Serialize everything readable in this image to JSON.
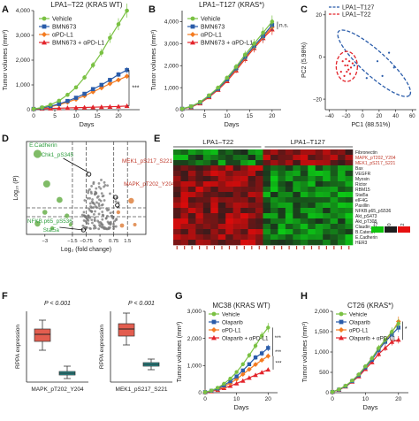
{
  "panel_letters": [
    "A",
    "B",
    "C",
    "D",
    "E",
    "F",
    "G",
    "H"
  ],
  "series_colors": {
    "Vehicle": "#7ac143",
    "BMN673": "#2a5caa",
    "aPD-L1": "#f47b20",
    "combo": "#e3242b",
    "Olaparib": "#2a5caa"
  },
  "chart_data": [
    {
      "id": "A",
      "type": "line",
      "title": "LPA1–T22 (KRAS WT)",
      "xlabel": "Days",
      "ylabel": "Tumor volumes (mm³)",
      "xlim": [
        0,
        25
      ],
      "ylim": [
        0,
        4000
      ],
      "xticks": [
        "0",
        "5",
        "10",
        "15",
        "20"
      ],
      "yticks": [
        "0",
        "1,000",
        "2,000",
        "3,000",
        "4,000"
      ],
      "x": [
        0,
        2,
        4,
        6,
        8,
        10,
        12,
        14,
        16,
        18,
        20,
        22
      ],
      "legend": [
        "Vehicle",
        "BMN673",
        "αPD-L1",
        "BMN673 + αPD-L1"
      ],
      "series": [
        {
          "name": "Vehicle",
          "color": "#7ac143",
          "marker": "circle",
          "values": [
            30,
            90,
            200,
            360,
            600,
            900,
            1300,
            1800,
            2300,
            2900,
            3450,
            4000
          ]
        },
        {
          "name": "BMN673",
          "color": "#2a5caa",
          "marker": "square",
          "values": [
            30,
            70,
            140,
            230,
            350,
            480,
            640,
            830,
            1000,
            1200,
            1420,
            1600
          ]
        },
        {
          "name": "αPD-L1",
          "color": "#f47b20",
          "marker": "diamond",
          "values": [
            30,
            60,
            120,
            200,
            300,
            420,
            560,
            720,
            880,
            1050,
            1200,
            1350
          ]
        },
        {
          "name": "BMN673 + αPD-L1",
          "color": "#e3242b",
          "marker": "triangle",
          "values": [
            30,
            40,
            50,
            60,
            70,
            80,
            90,
            100,
            110,
            120,
            130,
            150
          ]
        }
      ],
      "annotations": [
        "***"
      ]
    },
    {
      "id": "B",
      "type": "line",
      "title": "LPA1–T127 (KRAS*)",
      "xlabel": "Days",
      "ylabel": "Tumor volumes (mm³)",
      "xlim": [
        0,
        22
      ],
      "ylim": [
        0,
        4500
      ],
      "xticks": [
        "0",
        "5",
        "10",
        "15",
        "20"
      ],
      "yticks": [
        "0",
        "1,000",
        "2,000",
        "3,000",
        "4,000"
      ],
      "x": [
        0,
        2,
        4,
        6,
        8,
        10,
        12,
        14,
        16,
        18,
        20
      ],
      "legend": [
        "Vehicle",
        "BMN673",
        "αPD-L1",
        "BMN673 + αPD-L1"
      ],
      "series": [
        {
          "name": "Vehicle",
          "color": "#7ac143",
          "marker": "circle",
          "values": [
            40,
            150,
            350,
            650,
            1000,
            1450,
            1950,
            2500,
            3000,
            3500,
            4000
          ]
        },
        {
          "name": "BMN673",
          "color": "#2a5caa",
          "marker": "square",
          "values": [
            40,
            140,
            330,
            620,
            950,
            1380,
            1880,
            2400,
            2900,
            3350,
            3850
          ]
        },
        {
          "name": "αPD-L1",
          "color": "#f47b20",
          "marker": "diamond",
          "values": [
            40,
            130,
            310,
            600,
            930,
            1350,
            1830,
            2350,
            2850,
            3300,
            3750
          ]
        },
        {
          "name": "BMN673 + αPD-L1",
          "color": "#e3242b",
          "marker": "triangle",
          "values": [
            40,
            120,
            290,
            570,
            900,
            1300,
            1780,
            2300,
            2800,
            3250,
            3650
          ]
        }
      ],
      "annotations": [
        "n.s."
      ]
    },
    {
      "id": "C",
      "type": "scatter",
      "xlabel": "PC1 (88.51%)",
      "ylabel": "PC2 (5.98%)",
      "xlim": [
        -45,
        65
      ],
      "ylim": [
        -25,
        22
      ],
      "xticks": [
        "−40",
        "−20",
        "0",
        "20",
        "40",
        "60"
      ],
      "yticks": [
        "−20",
        "0",
        "20"
      ],
      "legend": [
        "LPA1–T127",
        "LPA1–T22"
      ],
      "series": [
        {
          "name": "LPA1–T127",
          "color": "#2a5caa",
          "points": [
            [
              -10,
              -4
            ],
            [
              5,
              -10
            ],
            [
              18,
              -2
            ],
            [
              24,
              -9
            ],
            [
              32,
              2
            ],
            [
              38,
              -5
            ]
          ]
        },
        {
          "name": "LPA1–T22",
          "color": "#e3242b",
          "points": [
            [
              -26,
              -7
            ],
            [
              -24,
              -2
            ],
            [
              -22,
              -9
            ],
            [
              -21,
              -4
            ],
            [
              -20,
              -1
            ],
            [
              -19,
              -7
            ],
            [
              -18,
              -4
            ],
            [
              -17,
              -6
            ],
            [
              -16,
              -2
            ],
            [
              -15,
              -8
            ],
            [
              -14,
              -5
            ],
            [
              -12,
              -3
            ]
          ]
        }
      ]
    },
    {
      "id": "D",
      "type": "scatter",
      "xlabel": "Log₂ (fold change)",
      "ylabel": "Log₁₀ (P)",
      "xlim": [
        -4,
        2.5
      ],
      "xticks": [
        "−3",
        "−1.5",
        "−0.75",
        "0",
        "0.75",
        "1.5"
      ],
      "labels": [
        "E.Cadherin",
        "Chk1_pS345",
        "NFKB.p65_pS536",
        "Stat5a",
        "MEK1_pS217_S221",
        "MAPK_pT202_Y204"
      ]
    },
    {
      "id": "E",
      "type": "heatmap",
      "columns": [
        "LPA1–T22",
        "LPA1–T127"
      ],
      "rows": [
        "Fibronectin",
        "MAPK_pT202_Y204",
        "MEK1_pS217_S221",
        "Bax",
        "VEGFR",
        "Myosin",
        "Rictor",
        "RBM15",
        "Stat5a",
        "eIF4G",
        "Paxillin",
        "NFKB.p65_pS536",
        "Akt_pS473",
        "Akt_pT308",
        "Claudin_7",
        "B.Catenin",
        "E.Cadherin",
        "HER3"
      ],
      "highlight_rows": [
        "MAPK_pT202_Y204",
        "MEK1_pS217_S221"
      ],
      "scale": [
        "−2",
        "0",
        "2"
      ]
    },
    {
      "id": "F",
      "type": "box",
      "ylabel": "RPPA expression",
      "plots": [
        {
          "label": "MAPK_pT202_Y204",
          "pvalue": "P < 0.001",
          "groups": [
            {
              "color": "#e35d4f",
              "q1": 1.15,
              "median": 1.35,
              "q3": 1.5,
              "whisker_low": 0.9,
              "whisker_high": 1.75
            },
            {
              "color": "#2a9d9f",
              "q1": 0.2,
              "median": 0.25,
              "q3": 0.3,
              "whisker_low": 0.1,
              "whisker_high": 0.45
            }
          ]
        },
        {
          "label": "MEK1_pS217_S221",
          "pvalue": "P < 0.001",
          "groups": [
            {
              "color": "#e35d4f",
              "q1": 1.3,
              "median": 1.5,
              "q3": 1.65,
              "whisker_low": 1.05,
              "whisker_high": 1.95
            },
            {
              "color": "#2a9d9f",
              "q1": 0.45,
              "median": 0.5,
              "q3": 0.55,
              "whisker_low": 0.35,
              "whisker_high": 0.65
            }
          ]
        }
      ]
    },
    {
      "id": "G",
      "type": "line",
      "title": "MC38 (KRAS WT)",
      "xlabel": "Days",
      "ylabel": "Tumor volumes (mm³)",
      "xlim": [
        0,
        23
      ],
      "ylim": [
        0,
        3000
      ],
      "xticks": [
        "0",
        "10",
        "20"
      ],
      "yticks": [
        "0",
        "1,000",
        "2,000",
        "3,000"
      ],
      "x": [
        0,
        2,
        4,
        6,
        8,
        10,
        12,
        14,
        16,
        18,
        20
      ],
      "legend": [
        "Vehicle",
        "Olaparib",
        "αPD-L1",
        "Olaparib + αPD-L1"
      ],
      "series": [
        {
          "name": "Vehicle",
          "color": "#7ac143",
          "marker": "circle",
          "values": [
            20,
            80,
            180,
            330,
            520,
            760,
            1050,
            1380,
            1730,
            2100,
            2400
          ]
        },
        {
          "name": "Olaparib",
          "color": "#2a5caa",
          "marker": "square",
          "values": [
            20,
            70,
            150,
            270,
            420,
            600,
            820,
            1050,
            1300,
            1450,
            1650
          ]
        },
        {
          "name": "αPD-L1",
          "color": "#f47b20",
          "marker": "diamond",
          "values": [
            20,
            60,
            130,
            230,
            350,
            500,
            680,
            860,
            1040,
            1200,
            1350
          ]
        },
        {
          "name": "Olaparib + αPD-L1",
          "color": "#e3242b",
          "marker": "triangle",
          "values": [
            20,
            50,
            100,
            170,
            250,
            340,
            440,
            550,
            650,
            750,
            850
          ]
        }
      ],
      "annotations": [
        "***",
        "***",
        "***"
      ]
    },
    {
      "id": "H",
      "type": "line",
      "title": "CT26 (KRAS*)",
      "xlabel": "Days",
      "ylabel": "Tumor volumes (mm³)",
      "xlim": [
        0,
        23
      ],
      "ylim": [
        0,
        2000
      ],
      "xticks": [
        "0",
        "10",
        "20"
      ],
      "yticks": [
        "0",
        "500",
        "1,000",
        "1,500",
        "2,000"
      ],
      "x": [
        0,
        2,
        4,
        6,
        8,
        10,
        12,
        14,
        16,
        18,
        20
      ],
      "legend": [
        "Vehicle",
        "Olaparib",
        "αPD-L1",
        "Olaparib + αPD-L1"
      ],
      "series": [
        {
          "name": "Vehicle",
          "color": "#7ac143",
          "marker": "circle",
          "values": [
            20,
            80,
            170,
            300,
            450,
            650,
            850,
            1100,
            1300,
            1500,
            1700
          ]
        },
        {
          "name": "Olaparib",
          "color": "#2a5caa",
          "marker": "square",
          "values": [
            20,
            75,
            160,
            285,
            430,
            620,
            810,
            1050,
            1250,
            1430,
            1600
          ]
        },
        {
          "name": "αPD-L1",
          "color": "#f47b20",
          "marker": "diamond",
          "values": [
            20,
            78,
            165,
            290,
            440,
            640,
            830,
            1080,
            1280,
            1480,
            1750
          ]
        },
        {
          "name": "Olaparib + αPD-L1",
          "color": "#e3242b",
          "marker": "triangle",
          "values": [
            20,
            70,
            150,
            270,
            400,
            580,
            750,
            950,
            1100,
            1250,
            1300
          ]
        }
      ],
      "annotations": [
        "*"
      ]
    }
  ]
}
